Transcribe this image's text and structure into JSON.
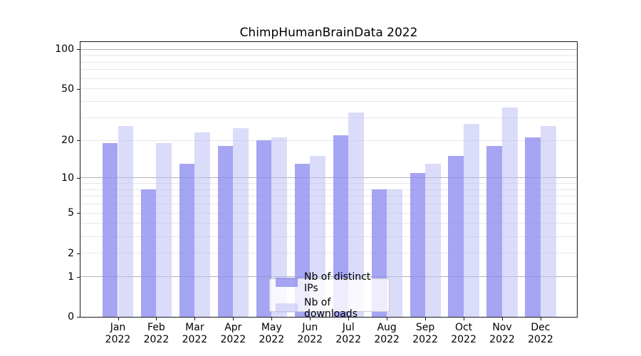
{
  "chart_data": {
    "type": "bar",
    "title": "ChimpHumanBrainData 2022",
    "x_categories": [
      "Jan",
      "Feb",
      "Mar",
      "Apr",
      "May",
      "Jun",
      "Jul",
      "Aug",
      "Sep",
      "Oct",
      "Nov",
      "Dec"
    ],
    "x_year": "2022",
    "series": [
      {
        "name": "Nb of distinct IPs",
        "color": "rgba(140,140,240,0.78)",
        "values": [
          19,
          8,
          13,
          18,
          20,
          13,
          22,
          8,
          11,
          15,
          18,
          21
        ]
      },
      {
        "name": "Nb of downloads",
        "color": "rgba(190,190,246,0.55)",
        "values": [
          26,
          19,
          23,
          25,
          21,
          15,
          33,
          8,
          13,
          27,
          36,
          26
        ]
      }
    ],
    "yscale": "log1p",
    "ylim": [
      0,
      113.5
    ],
    "yticks": [
      0,
      1,
      2,
      5,
      10,
      20,
      50,
      100
    ],
    "grid_major": [
      1,
      10,
      100
    ],
    "grid_minor": [
      2,
      3,
      4,
      5,
      6,
      7,
      8,
      9,
      20,
      30,
      40,
      50,
      60,
      70,
      80,
      90
    ],
    "legend_position": "lower center"
  }
}
